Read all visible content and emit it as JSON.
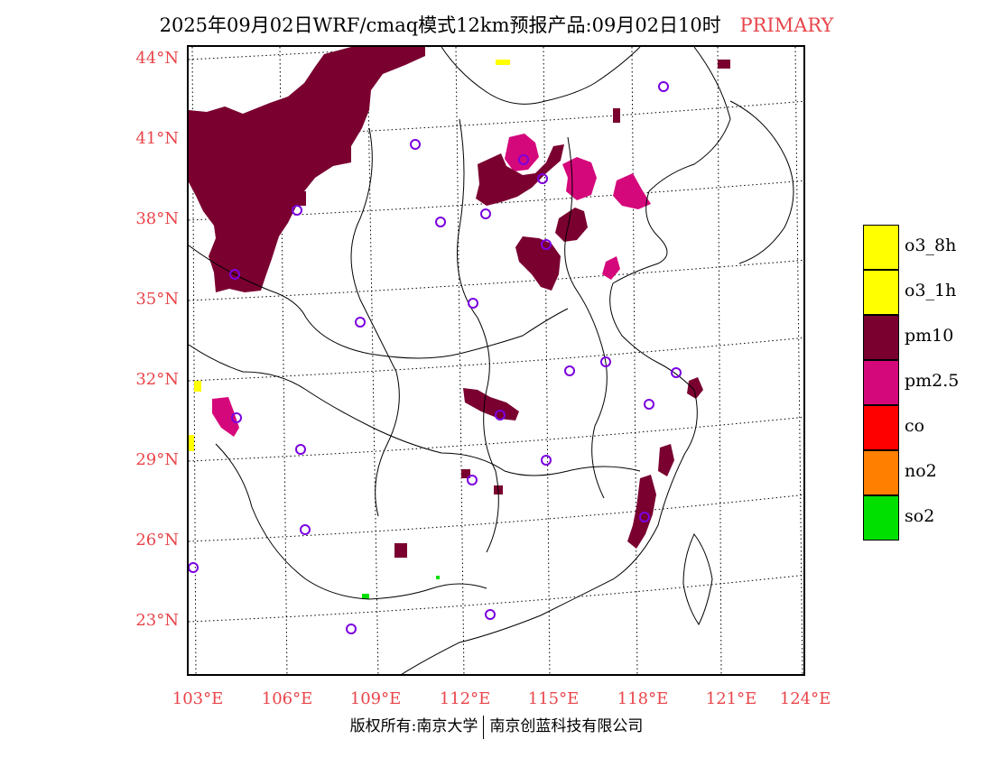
{
  "title": {
    "main": "2025年09月02日WRF/cmaq模式12km预报产品:09月02日10时",
    "tag": "PRIMARY"
  },
  "lat_ticks": [
    "44°N",
    "41°N",
    "38°N",
    "35°N",
    "32°N",
    "29°N",
    "26°N",
    "23°N"
  ],
  "lon_ticks": [
    "103°E",
    "106°E",
    "109°E",
    "112°E",
    "115°E",
    "118°E",
    "121°E",
    "124°E"
  ],
  "legend": [
    {
      "label": "o3_8h",
      "color": "#ffff00"
    },
    {
      "label": "o3_1h",
      "color": "#ffff00"
    },
    {
      "label": "pm10",
      "color": "#7a0030"
    },
    {
      "label": "pm2.5",
      "color": "#d5087b"
    },
    {
      "label": "co",
      "color": "#ff0000"
    },
    {
      "label": "no2",
      "color": "#ff7f00"
    },
    {
      "label": "so2",
      "color": "#00e000"
    }
  ],
  "copyright": {
    "left": "版权所有:南京大学",
    "right": "南京创蓝科技有限公司"
  }
}
